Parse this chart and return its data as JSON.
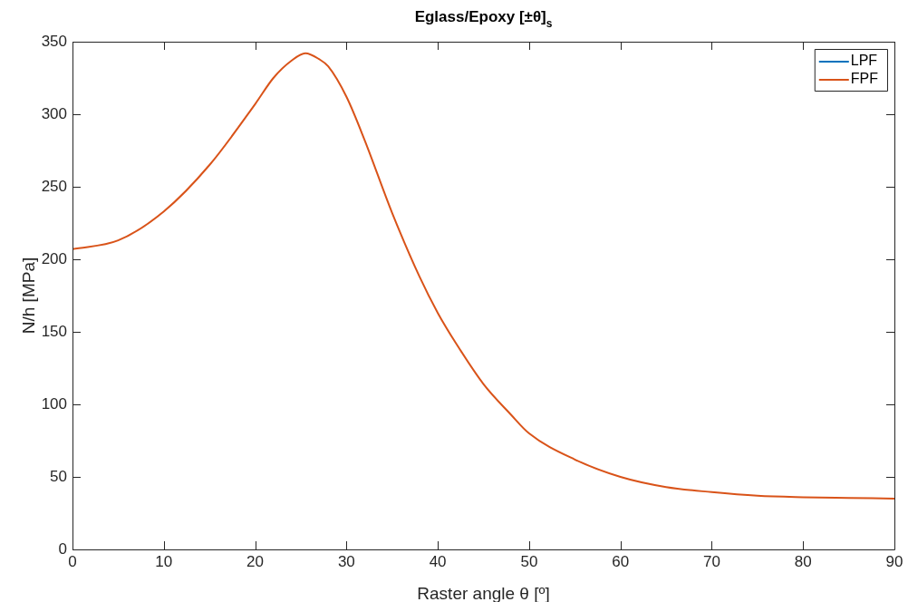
{
  "chart_data": {
    "type": "line",
    "title": "Eglass/Epoxy [±θ]$_{s}$",
    "xlabel": "Raster angle θ [º]",
    "ylabel": "N/h [MPa]",
    "x": [
      0,
      5,
      10,
      15,
      20,
      22,
      24,
      25.5,
      27,
      28,
      30,
      32,
      35,
      38,
      40,
      42,
      45,
      48,
      50,
      55,
      60,
      65,
      70,
      75,
      80,
      85,
      90
    ],
    "series": [
      {
        "name": "LPF",
        "color": "#0072bd",
        "values": [
          null,
          null,
          null,
          null,
          null,
          null,
          null,
          null,
          null,
          null,
          null,
          null,
          null,
          null,
          null,
          null,
          null,
          null,
          null,
          null,
          null,
          null,
          null,
          null,
          null,
          null,
          null
        ]
      },
      {
        "name": "FPF",
        "color": "#d95319",
        "values": [
          207,
          213,
          233,
          265,
          307,
          325,
          337,
          342,
          338,
          333,
          312,
          282,
          232,
          188,
          163,
          142,
          114,
          93,
          80,
          62,
          50,
          43,
          39.5,
          37,
          36,
          35.5,
          35
        ]
      }
    ],
    "xlim": [
      0,
      90
    ],
    "xticks": [
      0,
      10,
      20,
      30,
      40,
      50,
      60,
      70,
      80,
      90
    ],
    "ylim": [
      0,
      350
    ],
    "yticks": [
      0,
      50,
      100,
      150,
      200,
      250,
      300,
      350
    ],
    "grid": false,
    "legend": "top right",
    "marker": "none",
    "line_style": "solid"
  }
}
